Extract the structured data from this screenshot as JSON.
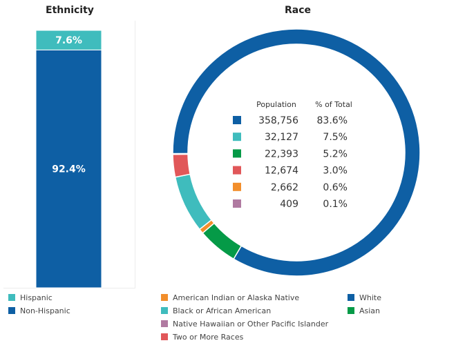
{
  "ethnicity": {
    "title": "Ethnicity",
    "legend": [
      {
        "label": "Hispanic",
        "color": "#3fbcbd"
      },
      {
        "label": "Non-Hispanic",
        "color": "#0e5fa4"
      }
    ]
  },
  "race": {
    "title": "Race",
    "table_headers": {
      "population": "Population",
      "pct": "% of Total"
    },
    "legend_left": [
      {
        "label": "American Indian or Alaska Native",
        "color": "#f28e2b"
      },
      {
        "label": "Black or African American",
        "color": "#3fbcbd"
      },
      {
        "label": "Native Hawaiian or Other Pacific Islander",
        "color": "#b07aa1"
      },
      {
        "label": "Two or More Races",
        "color": "#e15759"
      }
    ],
    "legend_right": [
      {
        "label": "White",
        "color": "#0e5fa4"
      },
      {
        "label": "Asian",
        "color": "#059a47"
      }
    ]
  },
  "chart_data": [
    {
      "type": "bar",
      "title": "Ethnicity",
      "stacked": true,
      "series": [
        {
          "name": "Non-Hispanic",
          "value": 92.4,
          "label": "92.4%",
          "color": "#0e5fa4"
        },
        {
          "name": "Hispanic",
          "value": 7.6,
          "label": "7.6%",
          "color": "#3fbcbd"
        }
      ],
      "ylim": [
        0,
        100
      ]
    },
    {
      "type": "pie",
      "title": "Race",
      "donut": true,
      "slices": [
        {
          "name": "White",
          "value": 358756,
          "value_label": "358,756",
          "pct": 83.6,
          "pct_label": "83.6%",
          "color": "#0e5fa4"
        },
        {
          "name": "Asian",
          "value": 22393,
          "value_label": "22,393",
          "pct": 5.2,
          "pct_label": "5.2%",
          "color": "#059a47"
        },
        {
          "name": "American Indian or Alaska Native",
          "value": 2662,
          "value_label": "2,662",
          "pct": 0.6,
          "pct_label": "0.6%",
          "color": "#f28e2b"
        },
        {
          "name": "Black or African American",
          "value": 32127,
          "value_label": "32,127",
          "pct": 7.5,
          "pct_label": "7.5%",
          "color": "#3fbcbd"
        },
        {
          "name": "Two or More Races",
          "value": 12674,
          "value_label": "12,674",
          "pct": 3.0,
          "pct_label": "3.0%",
          "color": "#e15759"
        },
        {
          "name": "Native Hawaiian or Other Pacific Islander",
          "value": 409,
          "value_label": "409",
          "pct": 0.1,
          "pct_label": "0.1%",
          "color": "#b07aa1"
        }
      ],
      "table_order": [
        "White",
        "Black or African American",
        "Asian",
        "Two or More Races",
        "American Indian or Alaska Native",
        "Native Hawaiian or Other Pacific Islander"
      ]
    }
  ]
}
